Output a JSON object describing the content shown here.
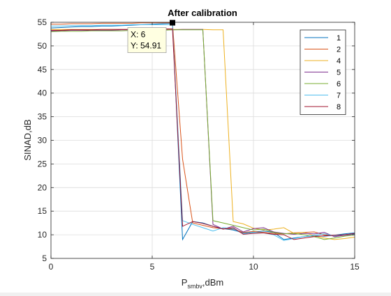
{
  "chart_data": {
    "type": "line",
    "title": "After calibration",
    "xlabel_main": "P",
    "xlabel_sub": "smbv",
    "xlabel_rest": ",dBm",
    "ylabel": "SINAD,dB",
    "xlim": [
      0,
      15
    ],
    "ylim": [
      5,
      55
    ],
    "xticks": [
      0,
      5,
      10,
      15
    ],
    "yticks": [
      5,
      10,
      15,
      20,
      25,
      30,
      35,
      40,
      45,
      50,
      55
    ],
    "grid": true,
    "legend_placement": "top-right",
    "datatip": {
      "x_text": "X: 6",
      "y_text": "Y: 54.91",
      "x": 6,
      "y": 54.91
    },
    "series": [
      {
        "name": "1",
        "color": "#0072BD",
        "x": [
          0,
          0.5,
          1,
          1.5,
          2,
          2.5,
          3,
          3.5,
          4,
          4.5,
          5,
          5.5,
          6,
          6.5,
          7,
          7.5,
          8,
          8.5,
          9,
          9.5,
          10,
          10.5,
          11,
          11.5,
          12,
          12.5,
          13,
          13.5,
          14,
          14.5,
          15
        ],
        "y": [
          53.8,
          53.9,
          54.0,
          54.1,
          54.1,
          54.2,
          54.2,
          54.3,
          54.4,
          54.5,
          54.6,
          54.7,
          54.8,
          9.0,
          12.8,
          12.5,
          11.8,
          11.3,
          11.0,
          10.4,
          10.6,
          10.8,
          10.5,
          9.0,
          9.3,
          9.6,
          9.8,
          9.7,
          9.9,
          10.2,
          10.4
        ]
      },
      {
        "name": "2",
        "color": "#D95319",
        "x": [
          0,
          0.5,
          1,
          1.5,
          2,
          2.5,
          3,
          3.5,
          4,
          4.5,
          5,
          5.5,
          6,
          6.5,
          7,
          7.5,
          8,
          8.5,
          9,
          9.5,
          10,
          10.5,
          11,
          11.5,
          12,
          12.5,
          13,
          13.5,
          14,
          14.5,
          15
        ],
        "y": [
          54.6,
          54.6,
          54.7,
          54.7,
          54.7,
          54.8,
          54.8,
          54.8,
          54.8,
          54.9,
          54.9,
          54.9,
          54.91,
          26.0,
          12.5,
          12.0,
          11.5,
          11.3,
          11.2,
          10.5,
          10.7,
          10.5,
          10.3,
          10.2,
          10.4,
          10.5,
          10.6,
          10.0,
          9.8,
          10.0,
          10.2
        ]
      },
      {
        "name": "4",
        "color": "#EDB120",
        "x": [
          0,
          0.5,
          1,
          1.5,
          2,
          2.5,
          3,
          3.5,
          4,
          4.5,
          5,
          5.5,
          6,
          6.5,
          7,
          7.5,
          8,
          8.5,
          9,
          9.5,
          10,
          10.5,
          11,
          11.5,
          12,
          12.5,
          13,
          13.5,
          14,
          14.5,
          15
        ],
        "y": [
          53.5,
          53.5,
          53.5,
          53.5,
          53.5,
          53.5,
          53.5,
          53.5,
          53.5,
          53.5,
          53.5,
          53.5,
          53.5,
          53.5,
          53.5,
          53.5,
          53.4,
          53.4,
          12.8,
          12.3,
          11.4,
          11.0,
          11.2,
          11.5,
          10.3,
          10.5,
          9.8,
          9.3,
          9.0,
          9.2,
          9.5
        ]
      },
      {
        "name": "5",
        "color": "#7E2F8E",
        "x": [
          0,
          0.5,
          1,
          1.5,
          2,
          2.5,
          3,
          3.5,
          4,
          4.5,
          5,
          5.5,
          6,
          6.5,
          7,
          7.5,
          8,
          8.5,
          9,
          9.5,
          10,
          10.5,
          11,
          11.5,
          12,
          12.5,
          13,
          13.5,
          14,
          14.5,
          15
        ],
        "y": [
          53.2,
          53.2,
          53.3,
          53.3,
          53.3,
          53.3,
          53.3,
          53.4,
          53.4,
          53.4,
          53.4,
          53.4,
          53.4,
          53.5,
          53.5,
          53.5,
          12.2,
          11.2,
          11.8,
          10.6,
          11.3,
          11.5,
          10.6,
          10.3,
          10.1,
          10.3,
          10.2,
          10.5,
          9.6,
          9.9,
          10.1
        ]
      },
      {
        "name": "6",
        "color": "#77AC30",
        "x": [
          0,
          0.5,
          1,
          1.5,
          2,
          2.5,
          3,
          3.5,
          4,
          4.5,
          5,
          5.5,
          6,
          6.5,
          7,
          7.5,
          8,
          8.5,
          9,
          9.5,
          10,
          10.5,
          11,
          11.5,
          12,
          12.5,
          13,
          13.5,
          14,
          14.5,
          15
        ],
        "y": [
          53.0,
          53.1,
          53.1,
          53.1,
          53.2,
          53.2,
          53.2,
          53.2,
          53.3,
          53.3,
          53.3,
          53.3,
          53.4,
          53.4,
          53.4,
          53.4,
          13.0,
          12.5,
          12.0,
          11.5,
          11.0,
          11.2,
          10.5,
          10.2,
          10.3,
          10.0,
          9.6,
          9.0,
          9.3,
          9.7,
          10.0
        ]
      },
      {
        "name": "7",
        "color": "#4DBEEE",
        "x": [
          0,
          0.5,
          1,
          1.5,
          2,
          2.5,
          3,
          3.5,
          4,
          4.5,
          5,
          5.5,
          6,
          6.5,
          7,
          7.5,
          8,
          8.5,
          9,
          9.5,
          10,
          10.5,
          11,
          11.5,
          12,
          12.5,
          13,
          13.5,
          14,
          14.5,
          15
        ],
        "y": [
          54.2,
          54.2,
          54.3,
          54.3,
          54.3,
          54.4,
          54.4,
          54.4,
          54.5,
          54.5,
          54.5,
          54.5,
          54.5,
          13.0,
          12.2,
          11.5,
          10.8,
          11.5,
          11.3,
          10.2,
          10.5,
          10.4,
          10.0,
          8.8,
          9.2,
          9.6,
          9.9,
          10.2,
          9.8,
          10.0,
          10.2
        ]
      },
      {
        "name": "8",
        "color": "#A2142F",
        "x": [
          0,
          0.5,
          1,
          1.5,
          2,
          2.5,
          3,
          3.5,
          4,
          4.5,
          5,
          5.5,
          6,
          6.5,
          7,
          7.5,
          8,
          8.5,
          9,
          9.5,
          10,
          10.5,
          11,
          11.5,
          12,
          12.5,
          13,
          13.5,
          14,
          14.5,
          15
        ],
        "y": [
          53.3,
          53.3,
          53.4,
          53.4,
          53.4,
          53.5,
          53.5,
          53.5,
          53.5,
          53.6,
          53.6,
          53.6,
          53.6,
          11.8,
          12.8,
          12.4,
          11.8,
          11.2,
          11.5,
          10.1,
          10.3,
          10.4,
          10.1,
          10.0,
          9.0,
          9.3,
          9.6,
          9.8,
          9.9,
          10.0,
          10.3
        ]
      }
    ]
  }
}
